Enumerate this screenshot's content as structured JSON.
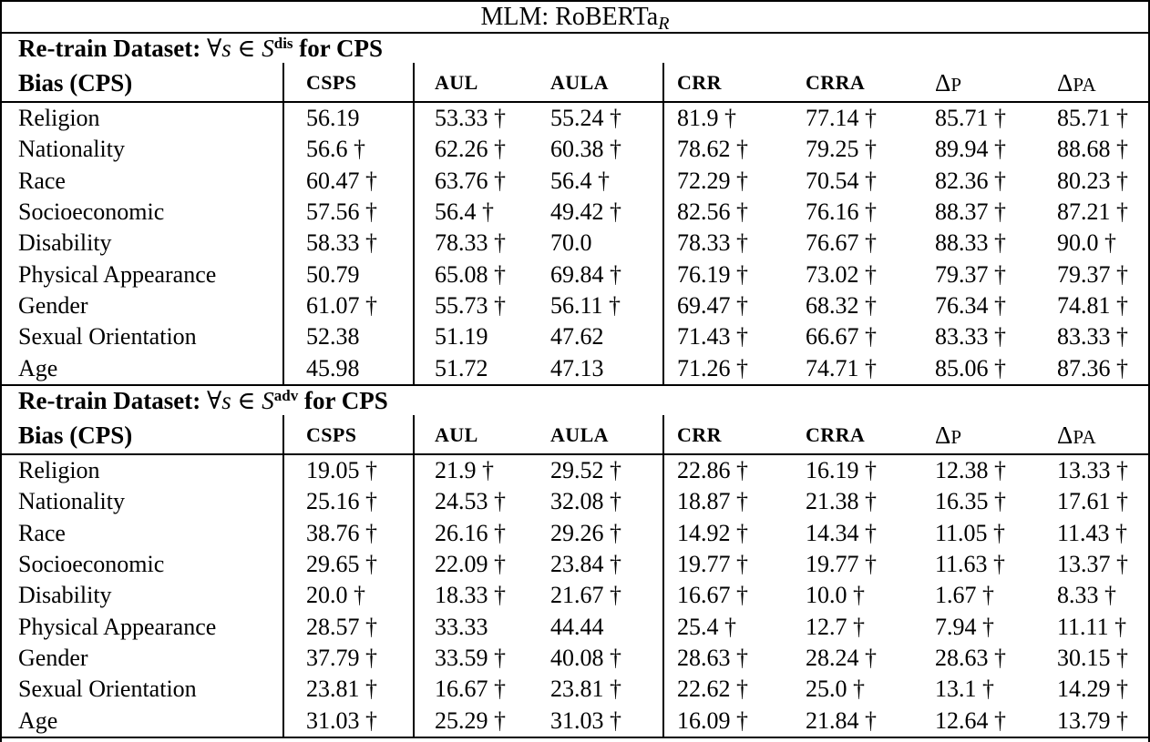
{
  "title": {
    "main": "MLM: RoBERTa",
    "subscript": "R"
  },
  "colors": {
    "text": "#000000",
    "background": "#ffffff",
    "rules": "#000000"
  },
  "bias_column_header": "Bias (CPS)",
  "metric_headers": [
    "CSPS",
    "AUL",
    "AULA",
    "CRR",
    "CRRA",
    "ΔP",
    "ΔPA"
  ],
  "footnote_marker": "†",
  "sections": [
    {
      "heading": {
        "label": "Re-train Dataset:",
        "forall": "∀",
        "variable": "s",
        "element_of": "∈",
        "set": "S",
        "superscript": "dis",
        "suffix": "for CPS"
      },
      "rows": [
        {
          "bias": "Religion",
          "values": [
            "56.19",
            "53.33 †",
            "55.24 †",
            "81.9 †",
            "77.14 †",
            "85.71 †",
            "85.71 †"
          ]
        },
        {
          "bias": "Nationality",
          "values": [
            "56.6 †",
            "62.26 †",
            "60.38 †",
            "78.62 †",
            "79.25 †",
            "89.94 †",
            "88.68 †"
          ]
        },
        {
          "bias": "Race",
          "values": [
            "60.47 †",
            "63.76 †",
            "56.4 †",
            "72.29 †",
            "70.54 †",
            "82.36 †",
            "80.23 †"
          ]
        },
        {
          "bias": "Socioeconomic",
          "values": [
            "57.56 †",
            "56.4 †",
            "49.42 †",
            "82.56 †",
            "76.16 †",
            "88.37 †",
            "87.21 †"
          ]
        },
        {
          "bias": "Disability",
          "values": [
            "58.33 †",
            "78.33 †",
            "70.0",
            "78.33 †",
            "76.67 †",
            "88.33 †",
            "90.0 †"
          ]
        },
        {
          "bias": "Physical Appearance",
          "values": [
            "50.79",
            "65.08 †",
            "69.84 †",
            "76.19 †",
            "73.02 †",
            "79.37 †",
            "79.37 †"
          ]
        },
        {
          "bias": "Gender",
          "values": [
            "61.07 †",
            "55.73 †",
            "56.11 †",
            "69.47 †",
            "68.32 †",
            "76.34 †",
            "74.81 †"
          ]
        },
        {
          "bias": "Sexual Orientation",
          "values": [
            "52.38",
            "51.19",
            "47.62",
            "71.43 †",
            "66.67 †",
            "83.33 †",
            "83.33 †"
          ]
        },
        {
          "bias": "Age",
          "values": [
            "45.98",
            "51.72",
            "47.13",
            "71.26 †",
            "74.71 †",
            "85.06 †",
            "87.36 †"
          ]
        }
      ]
    },
    {
      "heading": {
        "label": "Re-train Dataset:",
        "forall": "∀",
        "variable": "s",
        "element_of": "∈",
        "set": "S",
        "superscript": "adv",
        "suffix": "for CPS"
      },
      "rows": [
        {
          "bias": "Religion",
          "values": [
            "19.05 †",
            "21.9 †",
            "29.52 †",
            "22.86 †",
            "16.19 †",
            "12.38 †",
            "13.33 †"
          ]
        },
        {
          "bias": "Nationality",
          "values": [
            "25.16 †",
            "24.53 †",
            "32.08 †",
            "18.87 †",
            "21.38 †",
            "16.35 †",
            "17.61 †"
          ]
        },
        {
          "bias": "Race",
          "values": [
            "38.76 †",
            "26.16 †",
            "29.26 †",
            "14.92 †",
            "14.34 †",
            "11.05 †",
            "11.43 †"
          ]
        },
        {
          "bias": "Socioeconomic",
          "values": [
            "29.65 †",
            "22.09 †",
            "23.84 †",
            "19.77 †",
            "19.77 †",
            "11.63 †",
            "13.37 †"
          ]
        },
        {
          "bias": "Disability",
          "values": [
            "20.0 †",
            "18.33 †",
            "21.67 †",
            "16.67 †",
            "10.0 †",
            "1.67 †",
            "8.33 †"
          ]
        },
        {
          "bias": "Physical Appearance",
          "values": [
            "28.57 †",
            "33.33",
            "44.44",
            "25.4 †",
            "12.7 †",
            "7.94 †",
            "11.11 †"
          ]
        },
        {
          "bias": "Gender",
          "values": [
            "37.79 †",
            "33.59 †",
            "40.08 †",
            "28.63 †",
            "28.24 †",
            "28.63 †",
            "30.15 †"
          ]
        },
        {
          "bias": "Sexual Orientation",
          "values": [
            "23.81 †",
            "16.67 †",
            "23.81 †",
            "22.62 †",
            "25.0 †",
            "13.1 †",
            "14.29 †"
          ]
        },
        {
          "bias": "Age",
          "values": [
            "31.03 †",
            "25.29 †",
            "31.03 †",
            "16.09 †",
            "21.84 †",
            "12.64 †",
            "13.79 †"
          ]
        }
      ]
    }
  ]
}
